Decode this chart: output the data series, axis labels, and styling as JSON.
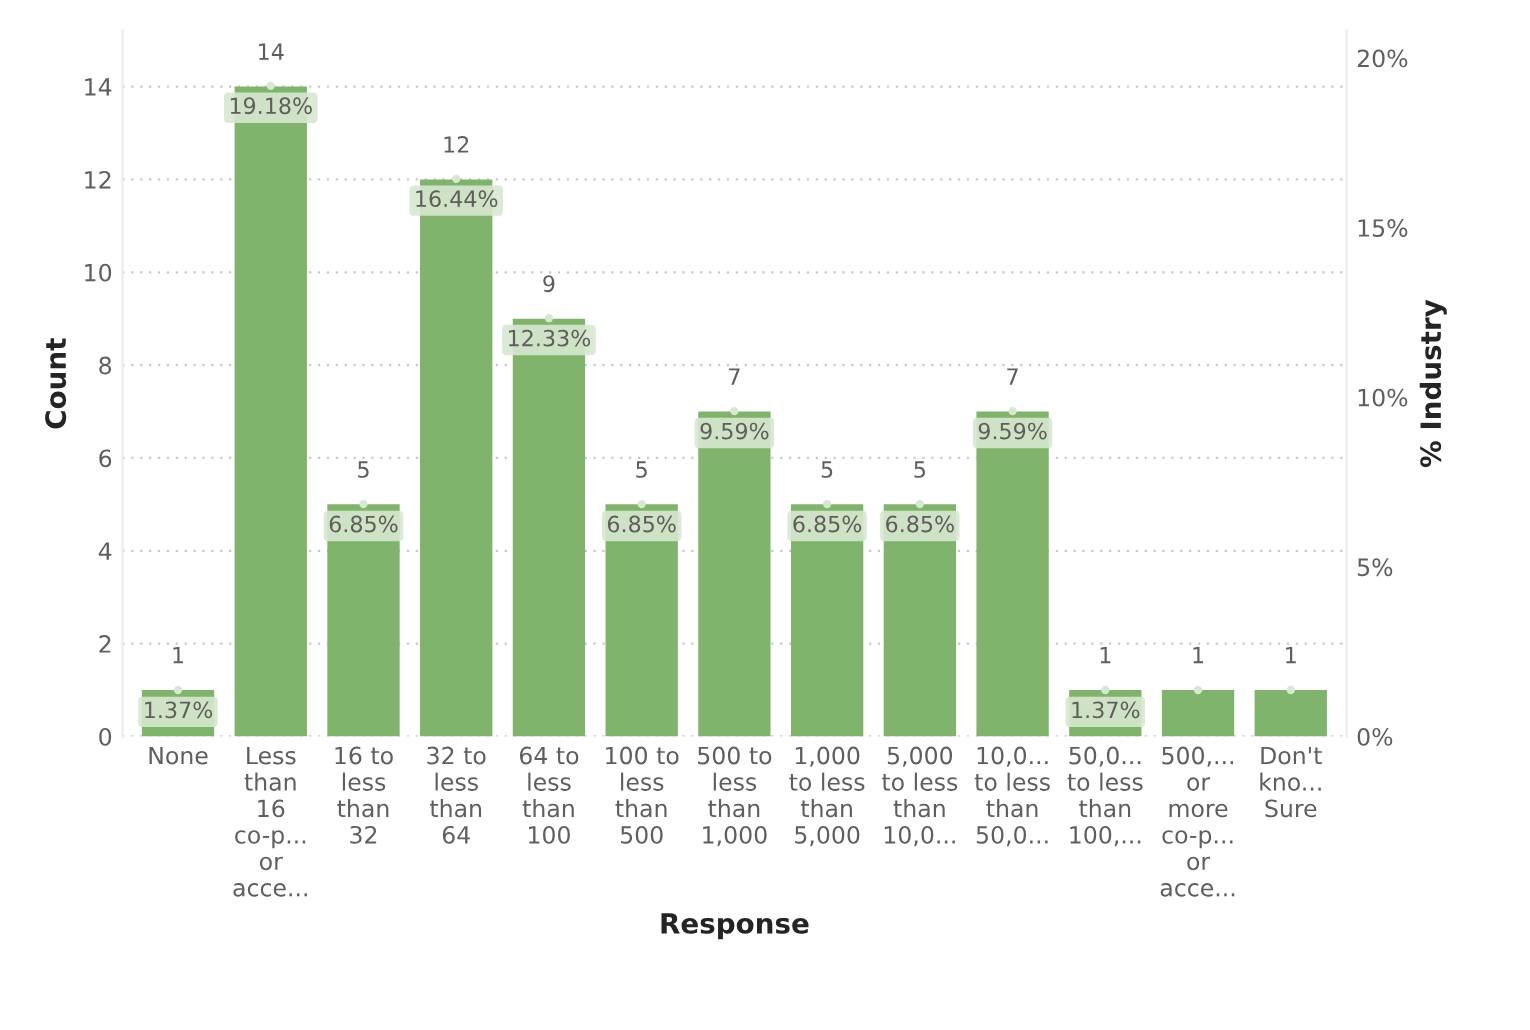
{
  "chart_data": {
    "type": "bar",
    "xlabel": "Response",
    "ylabel": "Count",
    "y2label": "% Industry",
    "categories": [
      "None",
      "Less\nthan\n16\nco-p...\nor\nacce...",
      "16 to\nless\nthan\n32",
      "32 to\nless\nthan\n64",
      "64 to\nless\nthan\n100",
      "100 to\nless\nthan\n500",
      "500 to\nless\nthan\n1,000",
      "1,000\nto less\nthan\n5,000",
      "5,000\nto less\nthan\n10,0...",
      "10,0...\nto less\nthan\n50,0...",
      "50,0...\nto less\nthan\n100,...",
      "500,...\nor\nmore\nco-p...\nor\nacce...",
      "Don't\nkno...\nSure"
    ],
    "series": [
      {
        "color": "#80b36b",
        "values": [
          1,
          14,
          5,
          12,
          9,
          5,
          7,
          5,
          5,
          7,
          1,
          1,
          1
        ],
        "value_labels": [
          "1",
          "14",
          "5",
          "12",
          "9",
          "5",
          "7",
          "5",
          "5",
          "7",
          "1",
          "1",
          "1"
        ]
      },
      {
        "type": "scatter",
        "axis": "y2",
        "color": "#d6e8cf",
        "values": [
          1.37,
          19.18,
          6.85,
          16.44,
          12.33,
          6.85,
          9.59,
          6.85,
          6.85,
          9.59,
          1.37,
          1.37,
          1.37
        ],
        "value_labels": [
          "1.37%",
          "19.18%",
          "6.85%",
          "16.44%",
          "12.33%",
          "6.85%",
          "9.59%",
          "6.85%",
          "6.85%",
          "9.59%",
          "1.37%",
          null,
          null
        ]
      }
    ],
    "ylim": [
      0,
      15.2
    ],
    "yticks": [
      0,
      2,
      4,
      6,
      8,
      10,
      12,
      14
    ],
    "y2lim": [
      0,
      20.8
    ],
    "y2ticks": [
      {
        "value": 0,
        "label": "0%"
      },
      {
        "value": 5,
        "label": "5%"
      },
      {
        "value": 10,
        "label": "10%"
      },
      {
        "value": 15,
        "label": "15%"
      },
      {
        "value": 20,
        "label": "20%"
      }
    ],
    "grid": "y"
  }
}
